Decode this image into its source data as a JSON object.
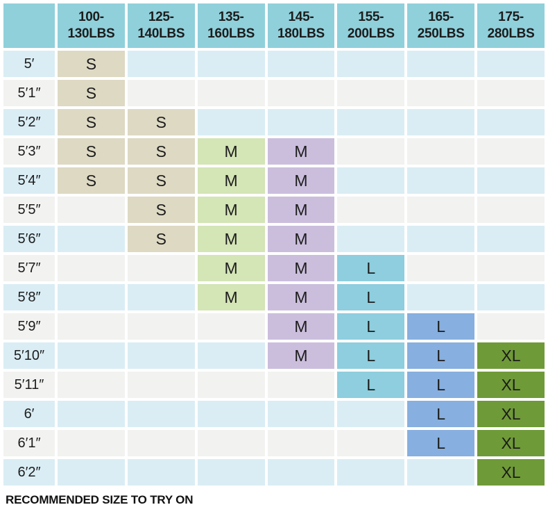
{
  "chart_data": {
    "type": "table",
    "title": "",
    "caption": "RECOMMENDED SIZE TO TRY ON",
    "colors": {
      "header_fill": "#8fd0db",
      "row_band_blue": "#daedf4",
      "row_band_gray": "#f2f2f1",
      "grid_line": "#ffffff",
      "text": "#1c1c1c",
      "size_s_fill": "#ded9c3",
      "size_m_green_fill": "#d4e5b6",
      "size_m_purple_fill": "#cbbedd",
      "size_l_teal_fill": "#8ecede",
      "size_l_blue_fill": "#87afdf",
      "size_xl_fill": "#6f9a38"
    },
    "weight_columns": [
      {
        "label": "100-\n130LBS",
        "fill": "#ded9c3"
      },
      {
        "label": "125-\n140LBS",
        "fill": "#ded9c3"
      },
      {
        "label": "135-\n160LBS",
        "fill": "#d4e5b6"
      },
      {
        "label": "145-\n180LBS",
        "fill": "#cbbedd"
      },
      {
        "label": "155-\n200LBS",
        "fill": "#8ecede"
      },
      {
        "label": "165-\n250LBS",
        "fill": "#87afdf"
      },
      {
        "label": "175-\n280LBS",
        "fill": "#6f9a38"
      }
    ],
    "height_rows": [
      {
        "label": "5′",
        "cells": [
          "S",
          "",
          "",
          "",
          "",
          "",
          ""
        ]
      },
      {
        "label": "5′1″",
        "cells": [
          "S",
          "",
          "",
          "",
          "",
          "",
          ""
        ]
      },
      {
        "label": "5′2″",
        "cells": [
          "S",
          "S",
          "",
          "",
          "",
          "",
          ""
        ]
      },
      {
        "label": "5′3″",
        "cells": [
          "S",
          "S",
          "M",
          "M",
          "",
          "",
          ""
        ]
      },
      {
        "label": "5′4″",
        "cells": [
          "S",
          "S",
          "M",
          "M",
          "",
          "",
          ""
        ]
      },
      {
        "label": "5′5″",
        "cells": [
          "",
          "S",
          "M",
          "M",
          "",
          "",
          ""
        ]
      },
      {
        "label": "5′6″",
        "cells": [
          "",
          "S",
          "M",
          "M",
          "",
          "",
          ""
        ]
      },
      {
        "label": "5′7″",
        "cells": [
          "",
          "",
          "M",
          "M",
          "L",
          "",
          ""
        ]
      },
      {
        "label": "5′8″",
        "cells": [
          "",
          "",
          "M",
          "M",
          "L",
          "",
          ""
        ]
      },
      {
        "label": "5′9″",
        "cells": [
          "",
          "",
          "",
          "M",
          "L",
          "L",
          ""
        ]
      },
      {
        "label": "5′10″",
        "cells": [
          "",
          "",
          "",
          "M",
          "L",
          "L",
          "XL"
        ]
      },
      {
        "label": "5′11″",
        "cells": [
          "",
          "",
          "",
          "",
          "L",
          "L",
          "XL"
        ]
      },
      {
        "label": "6′",
        "cells": [
          "",
          "",
          "",
          "",
          "",
          "L",
          "XL"
        ]
      },
      {
        "label": "6′1″",
        "cells": [
          "",
          "",
          "",
          "",
          "",
          "L",
          "XL"
        ]
      },
      {
        "label": "6′2″",
        "cells": [
          "",
          "",
          "",
          "",
          "",
          "",
          "XL"
        ]
      }
    ]
  }
}
